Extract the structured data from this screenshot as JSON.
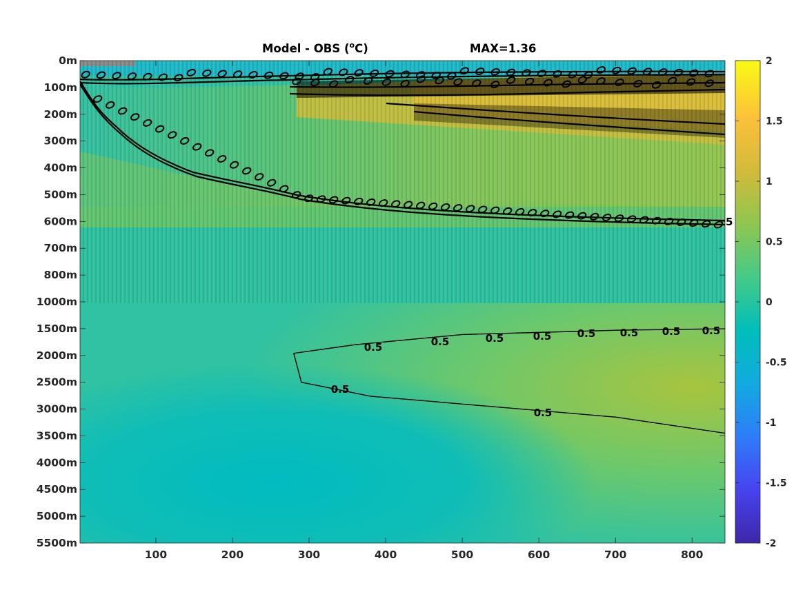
{
  "chart_data": {
    "type": "heatmap",
    "title_prefix": "Model - OBS (",
    "title_unit_sup": "o",
    "title_unit_suffix": "C)",
    "title_max": "MAX=1.36",
    "x": {
      "ticks": [
        100,
        200,
        300,
        400,
        500,
        600,
        700,
        800
      ],
      "range": [
        1,
        843
      ]
    },
    "y": {
      "tick_labels": [
        "0m",
        "100m",
        "200m",
        "300m",
        "400m",
        "500m",
        "600m",
        "700m",
        "800m",
        "1000m",
        "1500m",
        "2000m",
        "2500m",
        "3000m",
        "3500m",
        "4000m",
        "4500m",
        "5000m",
        "5500m"
      ],
      "scale": "piecewise (uniform spacing per labeled depth level)"
    },
    "colorbar": {
      "ticks": [
        "2",
        "1.5",
        "1",
        "0.5",
        "0",
        "-0.5",
        "-1",
        "-1.5",
        "-2"
      ],
      "range": [
        -2,
        2
      ],
      "colormap": "parula",
      "colors": [
        "#3e26a8",
        "#4743f0",
        "#2f7cf9",
        "#12aae0",
        "#00beba",
        "#45ca88",
        "#8ec651",
        "#d1bb3b",
        "#fcc03a",
        "#f9fb14"
      ]
    },
    "contours": {
      "level": 0.5,
      "labels": [
        "0.5",
        "0.5",
        "0.5",
        "0.5",
        "0.5",
        "0.5",
        "0.5",
        "0.5",
        "0.5"
      ],
      "edge_label": "5",
      "small_labels": [
        "0.5"
      ]
    },
    "deep_contour_points": [
      {
        "x": 852,
        "y": 1500
      },
      {
        "x": 700,
        "y": 1530
      },
      {
        "x": 500,
        "y": 1610
      },
      {
        "x": 360,
        "y": 1800
      },
      {
        "x": 280,
        "y": 1960
      },
      {
        "x": 290,
        "y": 2500
      },
      {
        "x": 380,
        "y": 2760
      },
      {
        "x": 700,
        "y": 3150
      },
      {
        "x": 843,
        "y": 3450
      }
    ]
  }
}
